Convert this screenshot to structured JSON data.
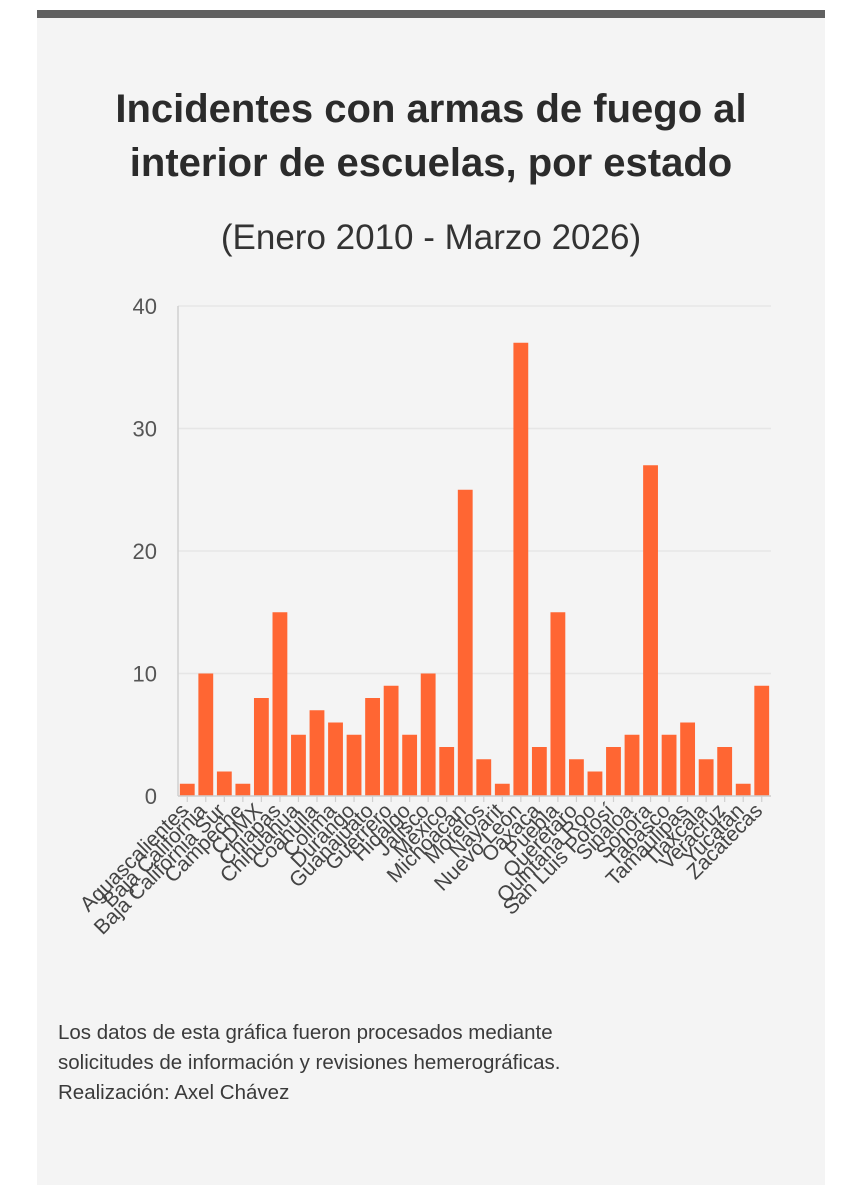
{
  "header": {
    "title_line1": "Incidentes con armas de fuego al",
    "title_line2": "interior de escuelas, por estado",
    "subtitle": "(Enero 2010 - Marzo 2026)"
  },
  "chart_data": {
    "type": "bar",
    "title": "Incidentes con armas de fuego al interior de escuelas, por estado",
    "subtitle": "(Enero 2010 - Marzo 2026)",
    "xlabel": "",
    "ylabel": "",
    "ylim": [
      0,
      40
    ],
    "yticks": [
      0,
      10,
      20,
      30,
      40
    ],
    "grid": true,
    "bar_color": "#ff6633",
    "categories": [
      "Aguascalientes",
      "Baja California",
      "Baja California Sur",
      "Campeche",
      "CDMX",
      "Chiapas",
      "Chihuahua",
      "Coahuila",
      "Colima",
      "Durango",
      "Guanajuato",
      "Guerrero",
      "Hidalgo",
      "Jalisco",
      "México",
      "Michoacán",
      "Morelos",
      "Nayarit",
      "Nuevo León",
      "Oaxaca",
      "Puebla",
      "Querétaro",
      "Quintana Roo",
      "San Luis Potosí",
      "Sinaloa",
      "Sonora",
      "Tabasco",
      "Tamaulipas",
      "Tlaxcala",
      "Veracruz",
      "Yucatán",
      "Zacatecas"
    ],
    "values": [
      1,
      10,
      2,
      1,
      8,
      15,
      5,
      7,
      6,
      5,
      8,
      9,
      5,
      10,
      4,
      25,
      3,
      1,
      37,
      4,
      15,
      3,
      2,
      4,
      5,
      27,
      5,
      6,
      3,
      4,
      1,
      9
    ]
  },
  "footer": {
    "note_line1": "Los datos de esta gráfica fueron procesados mediante",
    "note_line2": "solicitudes de información y revisiones hemerográficas.",
    "credit": "Realización: Axel Chávez"
  }
}
